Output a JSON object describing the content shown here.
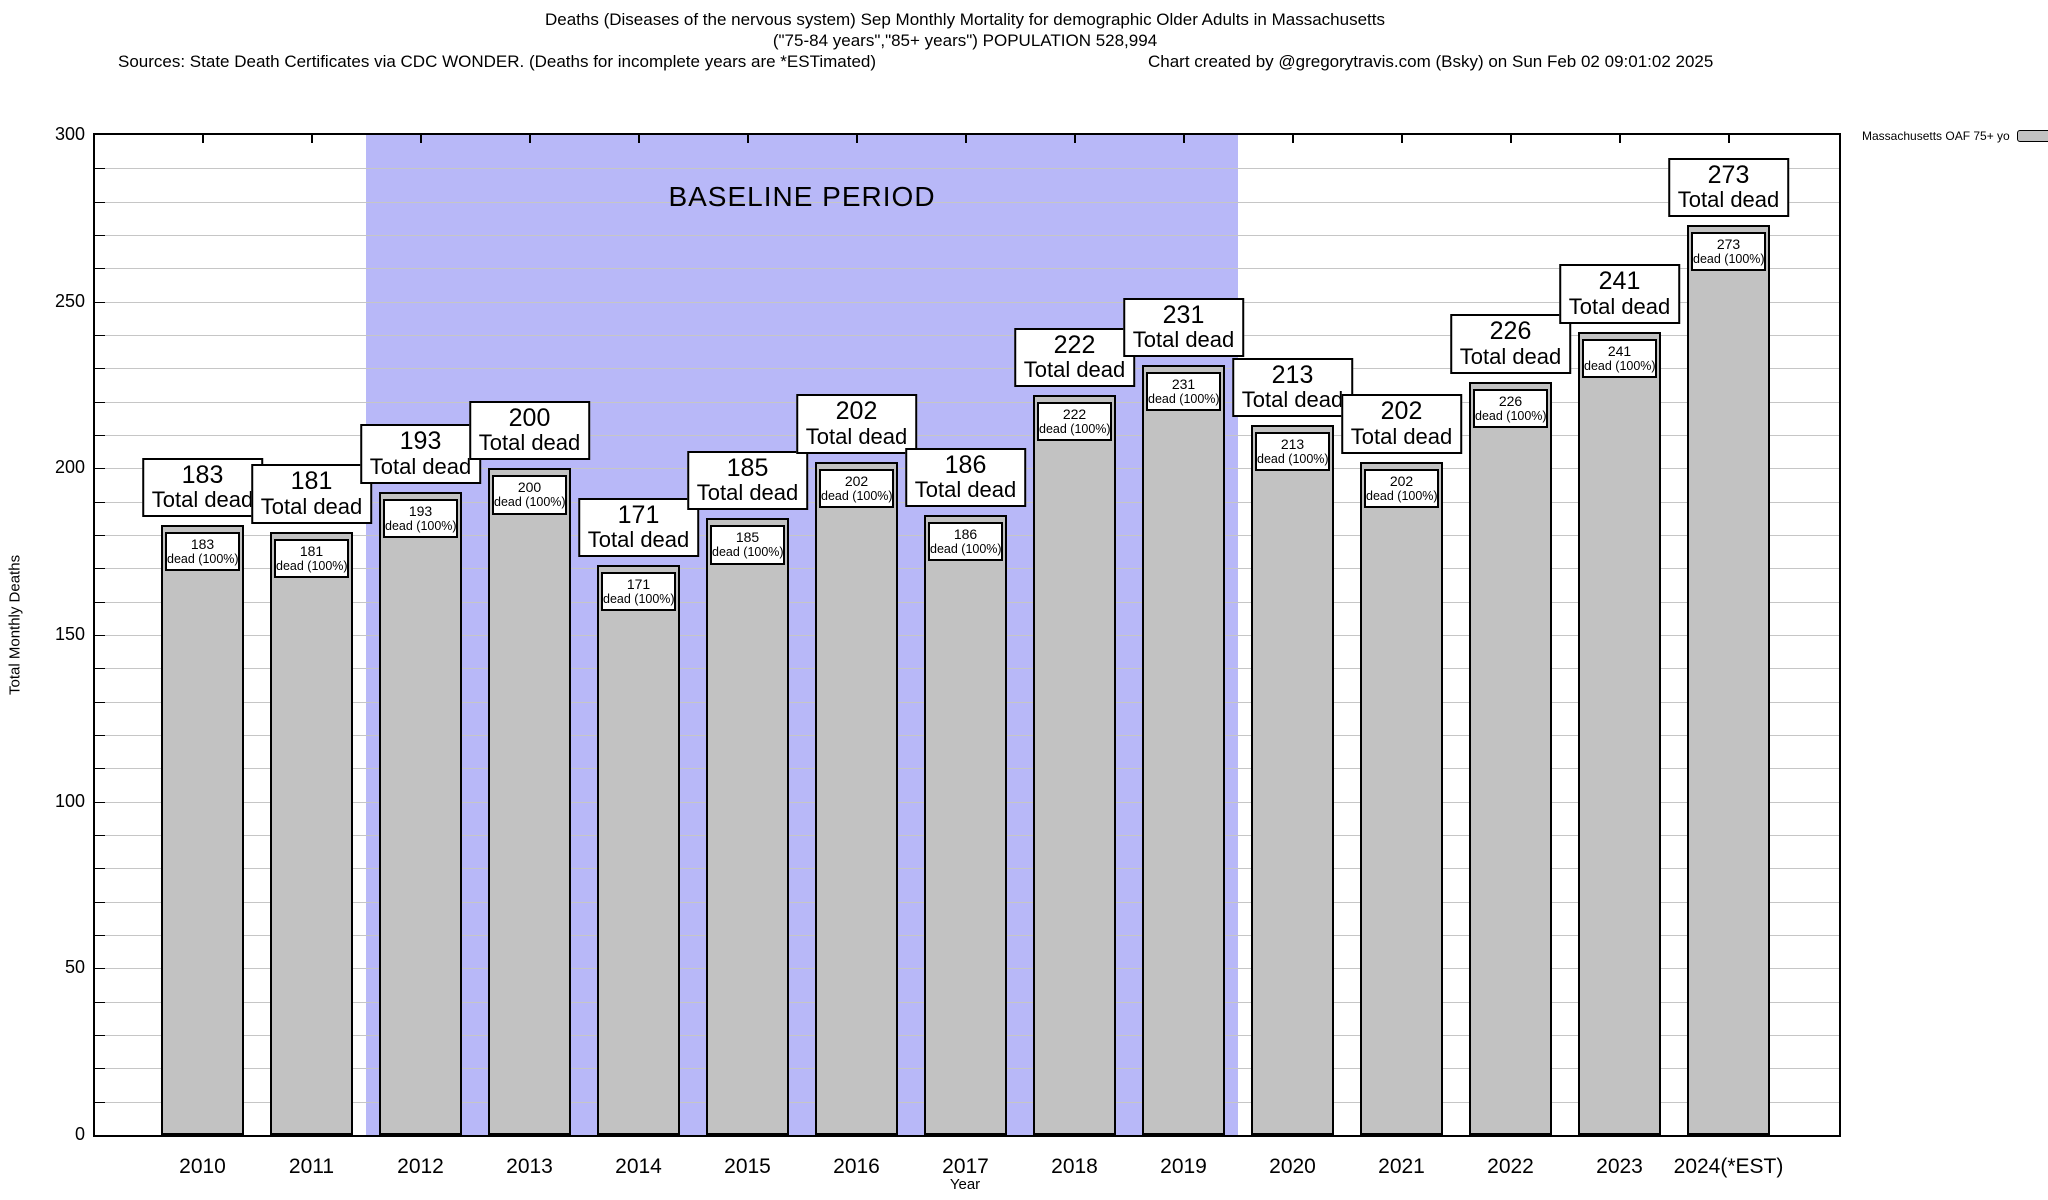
{
  "header": {
    "title_line1": "Deaths (Diseases of the nervous system) Sep Monthly Mortality for demographic Older Adults in Massachusetts",
    "title_line2": "(\"75-84 years\",\"85+ years\") POPULATION 528,994",
    "sources": "Sources: State Death Certificates via CDC WONDER. (Deaths for incomplete years are *ESTimated)",
    "credit": "Chart created by @gregorytravis.com (Bsky) on Sun Feb 02 09:01:02 2025"
  },
  "legend": {
    "label": "Massachusetts OAF 75+ yo",
    "swatch_color": "#c2c2c2"
  },
  "chart_data": {
    "type": "bar",
    "title": "Deaths (Diseases of the nervous system) Sep Monthly Mortality for demographic Older Adults in Massachusetts",
    "xlabel": "Year",
    "ylabel": "Total Monthly Deaths",
    "ylim": [
      0,
      300
    ],
    "yticks": [
      0,
      50,
      100,
      150,
      200,
      250,
      300
    ],
    "minor_grid_step": 10,
    "grid": true,
    "legend_position": "top-right",
    "categories": [
      "2010",
      "2011",
      "2012",
      "2013",
      "2014",
      "2015",
      "2016",
      "2017",
      "2018",
      "2019",
      "2020",
      "2021",
      "2022",
      "2023",
      "2024(*EST)"
    ],
    "values": [
      183,
      181,
      193,
      200,
      171,
      185,
      202,
      186,
      222,
      231,
      213,
      202,
      226,
      241,
      273
    ],
    "bar_color": "#c2c2c2",
    "bar_label_suffix": "Total dead",
    "bar_inner_suffix": "dead (100%)",
    "baseline": {
      "label": "BASELINE PERIOD",
      "start_index": 2,
      "end_index": 9,
      "color": "#b8b8f8"
    }
  }
}
